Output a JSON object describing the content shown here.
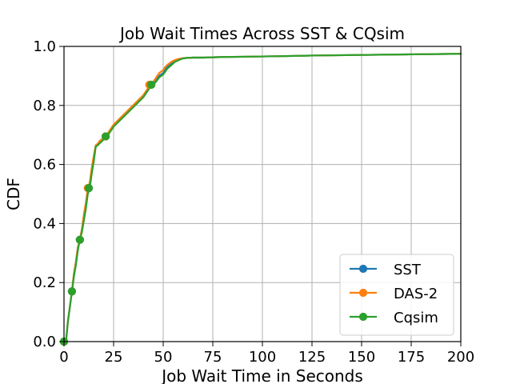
{
  "chart_data": {
    "type": "line",
    "title": "Job Wait Times Across SST & CQsim",
    "xlabel": "Job Wait Time in Seconds",
    "ylabel": "CDF",
    "xlim": [
      0,
      200
    ],
    "ylim": [
      0.0,
      1.0
    ],
    "x_ticks": [
      0,
      25,
      50,
      75,
      100,
      125,
      150,
      175,
      200
    ],
    "y_ticks": [
      0.0,
      0.2,
      0.4,
      0.6,
      0.8,
      1.0
    ],
    "x_tick_labels": [
      "0",
      "25",
      "50",
      "75",
      "100",
      "125",
      "150",
      "175",
      "200"
    ],
    "y_tick_labels": [
      "0.0",
      "0.2",
      "0.4",
      "0.6",
      "0.8",
      "1.0"
    ],
    "grid": true,
    "legend_position": "bottom-right",
    "series": [
      {
        "name": "SST",
        "color": "#1f77b4",
        "x": [
          0,
          1,
          2,
          3,
          4,
          5,
          6,
          7,
          8,
          9,
          10,
          11,
          12,
          13,
          14,
          15,
          16,
          17,
          18,
          19,
          20,
          21,
          22,
          23,
          24,
          25,
          28,
          31,
          34,
          37,
          40,
          42,
          43,
          44,
          45,
          46,
          47,
          48,
          49,
          50,
          51,
          52,
          53,
          54,
          55,
          56,
          57,
          58,
          59,
          60,
          62,
          65,
          70,
          75,
          80,
          90,
          100,
          110,
          125,
          150,
          175,
          200
        ],
        "y": [
          0.0,
          0.0,
          0.07,
          0.12,
          0.17,
          0.23,
          0.27,
          0.32,
          0.345,
          0.38,
          0.42,
          0.46,
          0.515,
          0.53,
          0.58,
          0.62,
          0.665,
          0.67,
          0.675,
          0.68,
          0.69,
          0.695,
          0.7,
          0.71,
          0.72,
          0.73,
          0.75,
          0.77,
          0.79,
          0.81,
          0.83,
          0.85,
          0.86,
          0.87,
          0.875,
          0.88,
          0.89,
          0.9,
          0.905,
          0.91,
          0.92,
          0.93,
          0.935,
          0.94,
          0.945,
          0.95,
          0.953,
          0.956,
          0.958,
          0.96,
          0.961,
          0.962,
          0.962,
          0.963,
          0.964,
          0.965,
          0.966,
          0.967,
          0.969,
          0.971,
          0.973,
          0.975
        ],
        "marker_x": [
          0,
          4,
          8,
          12.5,
          21,
          43.5
        ],
        "marker_y": [
          0.0,
          0.17,
          0.345,
          0.52,
          0.695,
          0.87
        ]
      },
      {
        "name": "DAS-2",
        "color": "#ff7f0e",
        "x": [
          0,
          1,
          2,
          3,
          4,
          5,
          6,
          7,
          8,
          9,
          10,
          11,
          12,
          13,
          14,
          15,
          16,
          17,
          18,
          19,
          20,
          21,
          22,
          23,
          24,
          25,
          28,
          31,
          34,
          37,
          40,
          42,
          43,
          44,
          45,
          46,
          47,
          48,
          49,
          50,
          51,
          52,
          53,
          54,
          55,
          56,
          57,
          58,
          59,
          60,
          62,
          65,
          70,
          75,
          80,
          90,
          100,
          110,
          125,
          150,
          175,
          200
        ],
        "y": [
          0.0,
          0.0,
          0.07,
          0.12,
          0.17,
          0.23,
          0.27,
          0.32,
          0.345,
          0.38,
          0.43,
          0.47,
          0.52,
          0.54,
          0.59,
          0.63,
          0.665,
          0.67,
          0.68,
          0.685,
          0.69,
          0.695,
          0.705,
          0.715,
          0.725,
          0.735,
          0.755,
          0.775,
          0.795,
          0.815,
          0.835,
          0.855,
          0.865,
          0.872,
          0.88,
          0.89,
          0.9,
          0.91,
          0.915,
          0.92,
          0.93,
          0.937,
          0.942,
          0.947,
          0.951,
          0.954,
          0.956,
          0.958,
          0.959,
          0.96,
          0.961,
          0.962,
          0.962,
          0.963,
          0.964,
          0.965,
          0.966,
          0.967,
          0.969,
          0.971,
          0.973,
          0.975
        ],
        "marker_x": [
          0,
          4,
          8,
          12,
          21,
          43
        ],
        "marker_y": [
          0.0,
          0.17,
          0.345,
          0.52,
          0.695,
          0.87
        ]
      },
      {
        "name": "Cqsim",
        "color": "#2ca02c",
        "x": [
          0,
          1,
          2,
          3,
          4,
          5,
          6,
          7,
          8,
          9,
          10,
          11,
          12,
          13,
          14,
          15,
          16,
          17,
          18,
          19,
          20,
          21,
          22,
          23,
          24,
          25,
          28,
          31,
          34,
          37,
          40,
          42,
          43,
          44,
          45,
          46,
          47,
          48,
          49,
          50,
          51,
          52,
          53,
          54,
          55,
          56,
          57,
          58,
          59,
          60,
          62,
          65,
          70,
          75,
          80,
          90,
          100,
          110,
          125,
          150,
          175,
          200
        ],
        "y": [
          0.0,
          0.0,
          0.07,
          0.12,
          0.17,
          0.22,
          0.26,
          0.31,
          0.345,
          0.37,
          0.41,
          0.45,
          0.5,
          0.52,
          0.57,
          0.61,
          0.66,
          0.665,
          0.672,
          0.678,
          0.685,
          0.695,
          0.7,
          0.708,
          0.718,
          0.728,
          0.748,
          0.768,
          0.788,
          0.808,
          0.828,
          0.848,
          0.858,
          0.87,
          0.872,
          0.877,
          0.886,
          0.895,
          0.9,
          0.905,
          0.914,
          0.924,
          0.93,
          0.936,
          0.942,
          0.948,
          0.951,
          0.954,
          0.957,
          0.959,
          0.961,
          0.962,
          0.962,
          0.963,
          0.964,
          0.965,
          0.966,
          0.967,
          0.969,
          0.971,
          0.973,
          0.975
        ],
        "marker_x": [
          0,
          4,
          8,
          12.5,
          21,
          44
        ],
        "marker_y": [
          0.0,
          0.17,
          0.345,
          0.52,
          0.695,
          0.87
        ]
      }
    ]
  }
}
